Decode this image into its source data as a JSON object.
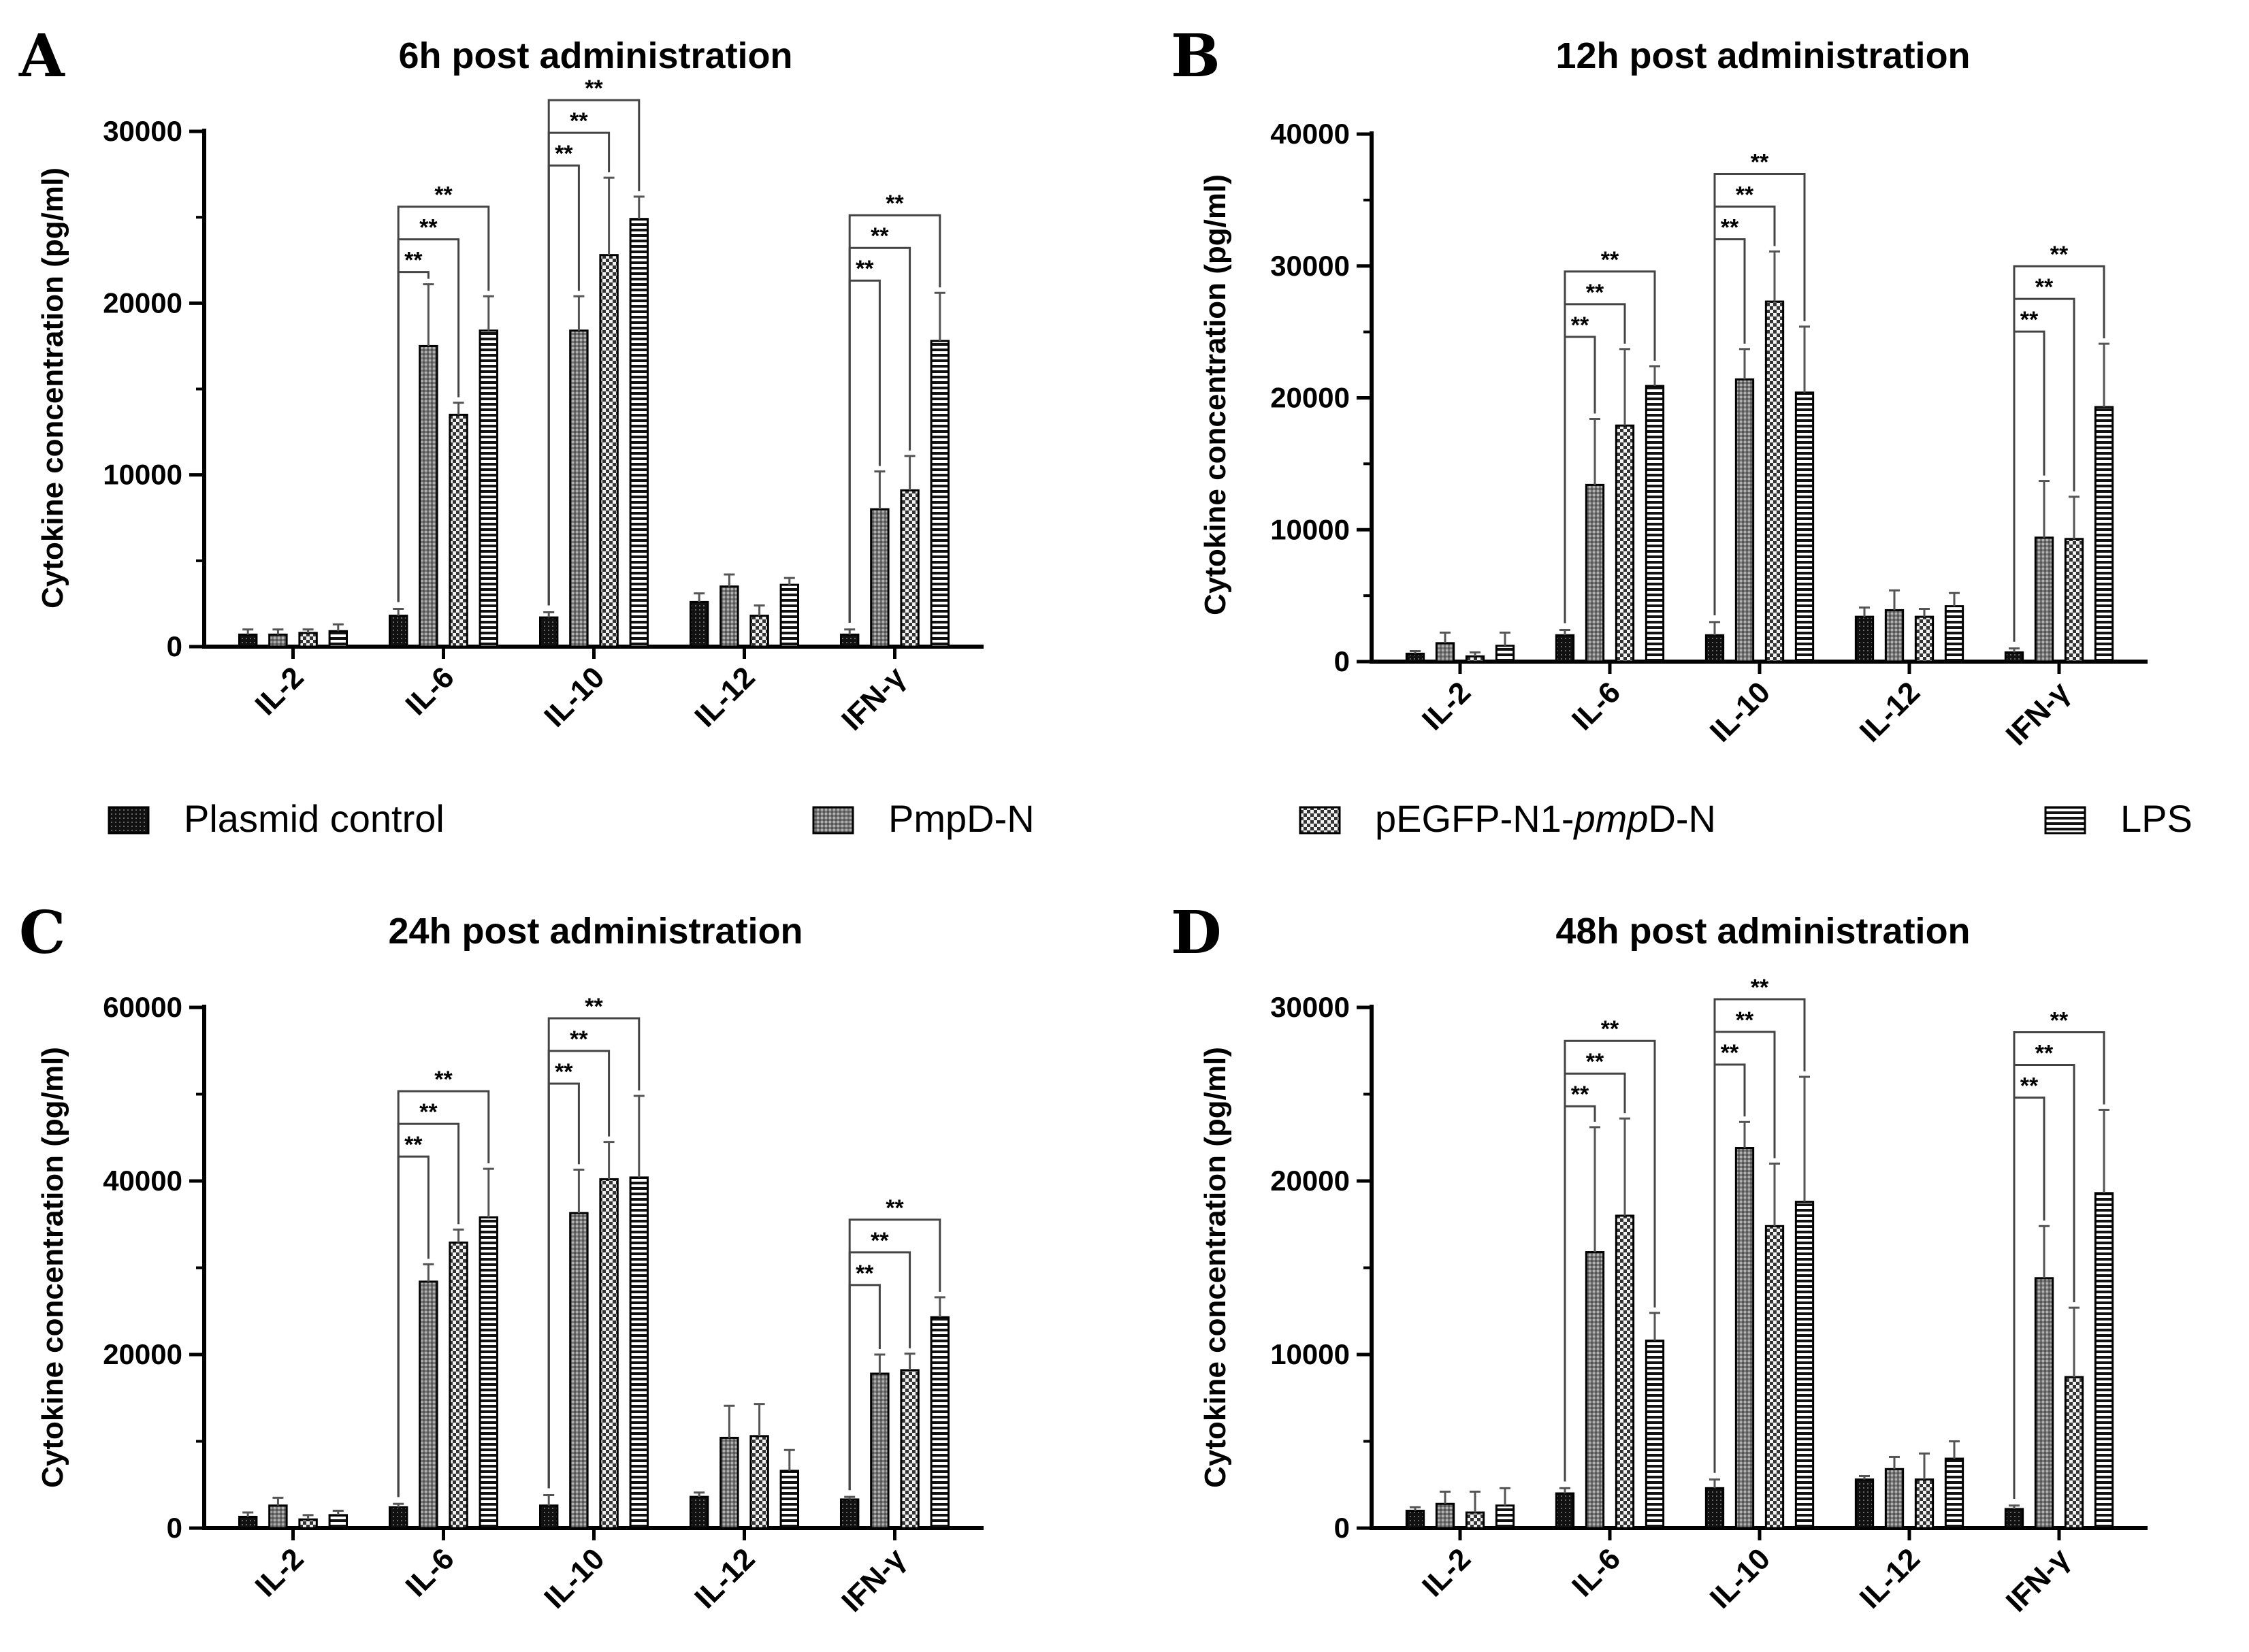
{
  "legend": [
    {
      "label": "Plasmid control",
      "pattern": "control"
    },
    {
      "label": "PmpD-N",
      "pattern": "pmpd"
    },
    {
      "label": "pEGFP-N1-pmpD-N",
      "label_prefix": "pEGFP-N1-",
      "label_italic": "pmp",
      "label_suffix": "D-N",
      "pattern": "pegfp"
    },
    {
      "label": "LPS",
      "pattern": "lps"
    }
  ],
  "chart_data": [
    {
      "type": "bar",
      "panel": "A",
      "title": "6h post administration",
      "ylabel": "Cytokine concentration (pg/ml)",
      "ylim": [
        0,
        30000
      ],
      "yticks": [
        "0",
        "10000",
        "20000",
        "30000"
      ],
      "categories": [
        "IL-2",
        "IL-6",
        "IL-10",
        "IL-12",
        "IFN-γ"
      ],
      "series": [
        {
          "name": "Plasmid control",
          "values": [
            700,
            1800,
            1700,
            2600,
            700
          ],
          "errors": [
            300,
            400,
            300,
            500,
            300
          ]
        },
        {
          "name": "PmpD-N",
          "values": [
            700,
            17500,
            18400,
            3500,
            8000
          ],
          "errors": [
            300,
            3600,
            2000,
            700,
            2200
          ]
        },
        {
          "name": "pEGFP-N1-pmpD-N",
          "values": [
            800,
            13500,
            22800,
            1800,
            9100
          ],
          "errors": [
            200,
            700,
            4500,
            600,
            2000
          ]
        },
        {
          "name": "LPS",
          "values": [
            900,
            18400,
            24900,
            3600,
            17800
          ],
          "errors": [
            400,
            2000,
            1300,
            400,
            2800
          ]
        }
      ],
      "significance": [
        {
          "category": "IL-6",
          "compare": [
            "Plasmid control",
            "PmpD-N"
          ],
          "label": "**"
        },
        {
          "category": "IL-6",
          "compare": [
            "Plasmid control",
            "pEGFP-N1-pmpD-N"
          ],
          "label": "**"
        },
        {
          "category": "IL-6",
          "compare": [
            "Plasmid control",
            "LPS"
          ],
          "label": "**"
        },
        {
          "category": "IL-10",
          "compare": [
            "Plasmid control",
            "PmpD-N"
          ],
          "label": "**"
        },
        {
          "category": "IL-10",
          "compare": [
            "Plasmid control",
            "pEGFP-N1-pmpD-N"
          ],
          "label": "**"
        },
        {
          "category": "IL-10",
          "compare": [
            "Plasmid control",
            "LPS"
          ],
          "label": "**"
        },
        {
          "category": "IFN-γ",
          "compare": [
            "Plasmid control",
            "PmpD-N"
          ],
          "label": "**"
        },
        {
          "category": "IFN-γ",
          "compare": [
            "Plasmid control",
            "pEGFP-N1-pmpD-N"
          ],
          "label": "**"
        },
        {
          "category": "IFN-γ",
          "compare": [
            "Plasmid control",
            "LPS"
          ],
          "label": "**"
        }
      ]
    },
    {
      "type": "bar",
      "panel": "B",
      "title": "12h post administration",
      "ylabel": "Cytokine concentration (pg/ml)",
      "ylim": [
        0,
        40000
      ],
      "yticks": [
        "0",
        "10000",
        "20000",
        "30000",
        "40000"
      ],
      "categories": [
        "IL-2",
        "IL-6",
        "IL-10",
        "IL-12",
        "IFN-γ"
      ],
      "series": [
        {
          "name": "Plasmid control",
          "values": [
            600,
            2000,
            2000,
            3400,
            700
          ],
          "errors": [
            200,
            400,
            1000,
            700,
            300
          ]
        },
        {
          "name": "PmpD-N",
          "values": [
            1400,
            13400,
            21400,
            3900,
            9400
          ],
          "errors": [
            800,
            5000,
            2300,
            1500,
            4300
          ]
        },
        {
          "name": "pEGFP-N1-pmpD-N",
          "values": [
            400,
            17900,
            27300,
            3400,
            9300
          ],
          "errors": [
            300,
            5800,
            3800,
            600,
            3200
          ]
        },
        {
          "name": "LPS",
          "values": [
            1200,
            20900,
            20400,
            4200,
            19300
          ],
          "errors": [
            1000,
            1500,
            5000,
            1000,
            4800
          ]
        }
      ],
      "significance": [
        {
          "category": "IL-6",
          "compare": [
            "Plasmid control",
            "PmpD-N"
          ],
          "label": "**"
        },
        {
          "category": "IL-6",
          "compare": [
            "Plasmid control",
            "pEGFP-N1-pmpD-N"
          ],
          "label": "**"
        },
        {
          "category": "IL-6",
          "compare": [
            "Plasmid control",
            "LPS"
          ],
          "label": "**"
        },
        {
          "category": "IL-10",
          "compare": [
            "Plasmid control",
            "PmpD-N"
          ],
          "label": "**"
        },
        {
          "category": "IL-10",
          "compare": [
            "Plasmid control",
            "pEGFP-N1-pmpD-N"
          ],
          "label": "**"
        },
        {
          "category": "IL-10",
          "compare": [
            "Plasmid control",
            "LPS"
          ],
          "label": "**"
        },
        {
          "category": "IFN-γ",
          "compare": [
            "Plasmid control",
            "PmpD-N"
          ],
          "label": "**"
        },
        {
          "category": "IFN-γ",
          "compare": [
            "Plasmid control",
            "pEGFP-N1-pmpD-N"
          ],
          "label": "**"
        },
        {
          "category": "IFN-γ",
          "compare": [
            "Plasmid control",
            "LPS"
          ],
          "label": "**"
        }
      ]
    },
    {
      "type": "bar",
      "panel": "C",
      "title": "24h post administration",
      "ylabel": "Cytokine concentration (pg/ml)",
      "ylim": [
        0,
        60000
      ],
      "yticks": [
        "0",
        "20000",
        "40000",
        "60000"
      ],
      "categories": [
        "IL-2",
        "IL-6",
        "IL-10",
        "IL-12",
        "IFN-γ"
      ],
      "series": [
        {
          "name": "Plasmid control",
          "values": [
            1300,
            2400,
            2600,
            3600,
            3300
          ],
          "errors": [
            500,
            400,
            1200,
            500,
            300
          ]
        },
        {
          "name": "PmpD-N",
          "values": [
            2600,
            28400,
            36300,
            10400,
            17800
          ],
          "errors": [
            900,
            2000,
            5000,
            3700,
            2200
          ]
        },
        {
          "name": "pEGFP-N1-pmpD-N",
          "values": [
            1000,
            32900,
            40200,
            10600,
            18200
          ],
          "errors": [
            500,
            1500,
            4300,
            3700,
            1900
          ]
        },
        {
          "name": "LPS",
          "values": [
            1500,
            35800,
            40400,
            6600,
            24300
          ],
          "errors": [
            500,
            5600,
            9400,
            2400,
            2300
          ]
        }
      ],
      "significance": [
        {
          "category": "IL-6",
          "compare": [
            "Plasmid control",
            "PmpD-N"
          ],
          "label": "**"
        },
        {
          "category": "IL-6",
          "compare": [
            "Plasmid control",
            "pEGFP-N1-pmpD-N"
          ],
          "label": "**"
        },
        {
          "category": "IL-6",
          "compare": [
            "Plasmid control",
            "LPS"
          ],
          "label": "**"
        },
        {
          "category": "IL-10",
          "compare": [
            "Plasmid control",
            "PmpD-N"
          ],
          "label": "**"
        },
        {
          "category": "IL-10",
          "compare": [
            "Plasmid control",
            "pEGFP-N1-pmpD-N"
          ],
          "label": "**"
        },
        {
          "category": "IL-10",
          "compare": [
            "Plasmid control",
            "LPS"
          ],
          "label": "**"
        },
        {
          "category": "IFN-γ",
          "compare": [
            "Plasmid control",
            "PmpD-N"
          ],
          "label": "**"
        },
        {
          "category": "IFN-γ",
          "compare": [
            "Plasmid control",
            "pEGFP-N1-pmpD-N"
          ],
          "label": "**"
        },
        {
          "category": "IFN-γ",
          "compare": [
            "Plasmid control",
            "LPS"
          ],
          "label": "**"
        }
      ]
    },
    {
      "type": "bar",
      "panel": "D",
      "title": "48h post administration",
      "ylabel": "Cytokine concentration (pg/ml)",
      "ylim": [
        0,
        30000
      ],
      "yticks": [
        "0",
        "10000",
        "20000",
        "30000"
      ],
      "categories": [
        "IL-2",
        "IL-6",
        "IL-10",
        "IL-12",
        "IFN-γ"
      ],
      "series": [
        {
          "name": "Plasmid control",
          "values": [
            1000,
            2000,
            2300,
            2800,
            1100
          ],
          "errors": [
            200,
            300,
            500,
            200,
            200
          ]
        },
        {
          "name": "PmpD-N",
          "values": [
            1400,
            15900,
            21900,
            3400,
            14400
          ],
          "errors": [
            700,
            7200,
            1500,
            700,
            3000
          ]
        },
        {
          "name": "pEGFP-N1-pmpD-N",
          "values": [
            900,
            18000,
            17400,
            2800,
            8700
          ],
          "errors": [
            1200,
            5600,
            3600,
            1500,
            4000
          ]
        },
        {
          "name": "LPS",
          "values": [
            1300,
            10800,
            18800,
            4000,
            19300
          ],
          "errors": [
            1000,
            1600,
            7200,
            1000,
            4800
          ]
        }
      ],
      "significance": [
        {
          "category": "IL-6",
          "compare": [
            "Plasmid control",
            "PmpD-N"
          ],
          "label": "**"
        },
        {
          "category": "IL-6",
          "compare": [
            "Plasmid control",
            "pEGFP-N1-pmpD-N"
          ],
          "label": "**"
        },
        {
          "category": "IL-6",
          "compare": [
            "Plasmid control",
            "LPS"
          ],
          "label": "**"
        },
        {
          "category": "IL-10",
          "compare": [
            "Plasmid control",
            "PmpD-N"
          ],
          "label": "**"
        },
        {
          "category": "IL-10",
          "compare": [
            "Plasmid control",
            "pEGFP-N1-pmpD-N"
          ],
          "label": "**"
        },
        {
          "category": "IL-10",
          "compare": [
            "Plasmid control",
            "LPS"
          ],
          "label": "**"
        },
        {
          "category": "IFN-γ",
          "compare": [
            "Plasmid control",
            "PmpD-N"
          ],
          "label": "**"
        },
        {
          "category": "IFN-γ",
          "compare": [
            "Plasmid control",
            "pEGFP-N1-pmpD-N"
          ],
          "label": "**"
        },
        {
          "category": "IFN-γ",
          "compare": [
            "Plasmid control",
            "LPS"
          ],
          "label": "**"
        }
      ]
    }
  ]
}
